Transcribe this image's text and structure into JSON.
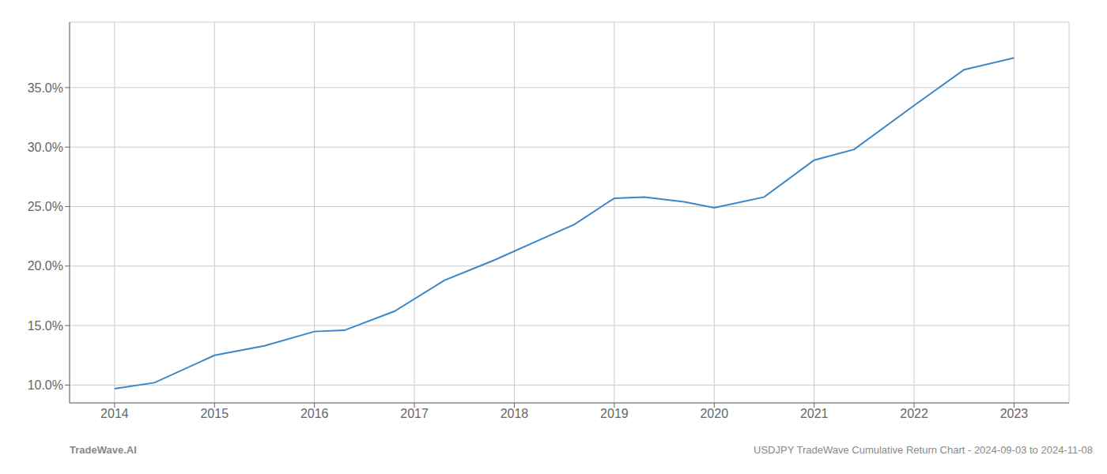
{
  "chart_data": {
    "type": "line",
    "x": [
      2014.0,
      2014.4,
      2015.0,
      2015.5,
      2016.0,
      2016.3,
      2016.8,
      2017.3,
      2017.8,
      2018.2,
      2018.6,
      2019.0,
      2019.3,
      2019.7,
      2020.0,
      2020.5,
      2021.0,
      2021.4,
      2022.0,
      2022.5,
      2023.0
    ],
    "values": [
      9.7,
      10.2,
      12.5,
      13.3,
      14.5,
      14.6,
      16.2,
      18.8,
      20.5,
      22.0,
      23.5,
      25.7,
      25.8,
      25.4,
      24.9,
      25.8,
      28.9,
      29.8,
      33.5,
      36.5,
      37.5
    ],
    "color": "#3a87c8",
    "xlim": [
      2013.55,
      2023.55
    ],
    "xticks": [
      2014,
      2015,
      2016,
      2017,
      2018,
      2019,
      2020,
      2021,
      2022,
      2023
    ],
    "ylim": [
      8.5,
      40.5
    ],
    "yticks": [
      {
        "value": 10,
        "label": "10.0%"
      },
      {
        "value": 15,
        "label": "15.0%"
      },
      {
        "value": 20,
        "label": "20.0%"
      },
      {
        "value": 25,
        "label": "25.0%"
      },
      {
        "value": 30,
        "label": "30.0%"
      },
      {
        "value": 35,
        "label": "35.0%"
      }
    ],
    "grid": true,
    "annotations": [
      "TradeWave.AI",
      "USDJPY TradeWave Cumulative Return Chart - 2024-09-03 to 2024-11-08"
    ]
  }
}
